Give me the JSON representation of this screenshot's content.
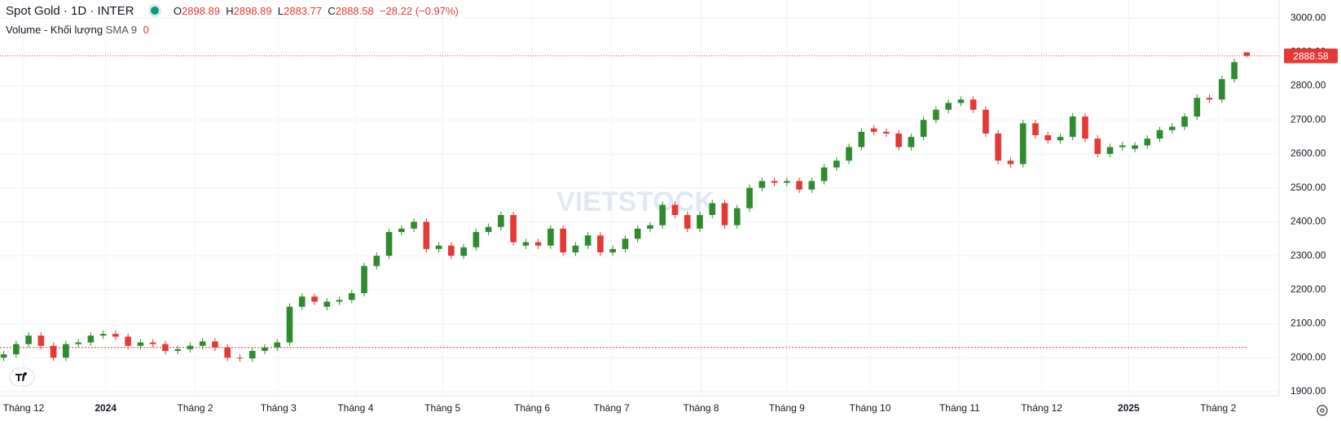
{
  "header": {
    "symbol": "Spot Gold · 1D · INTER",
    "ohlc_letters": [
      "O",
      "H",
      "L",
      "C"
    ],
    "change": "−28.22 (−0.97%)",
    "volume": "Volume - Khối lượng",
    "sma": "SMA 9",
    "sma_value": "0"
  },
  "chart_data": {
    "type": "candlestick",
    "watermark": "VIETSTOCK",
    "up_color": "#2e8b2e",
    "down_color": "#e53935",
    "grid": true,
    "ylim": [
      1888,
      3053
    ],
    "xlim": [
      -0.3,
      102.6
    ],
    "reference_level": 2030,
    "yticks": [
      {
        "value": 1900,
        "label": "1900.00"
      },
      {
        "value": 2000,
        "label": "2000.00"
      },
      {
        "value": 2100,
        "label": "2100.00"
      },
      {
        "value": 2200,
        "label": "2200.00"
      },
      {
        "value": 2300,
        "label": "2300.00"
      },
      {
        "value": 2400,
        "label": "2400.00"
      },
      {
        "value": 2500,
        "label": "2500.00"
      },
      {
        "value": 2600,
        "label": "2600.00"
      },
      {
        "value": 2700,
        "label": "2700.00"
      },
      {
        "value": 2800,
        "label": "2800.00"
      },
      {
        "value": 2900,
        "label": "2900.00"
      },
      {
        "value": 3000,
        "label": "3000.00"
      }
    ],
    "xticks": [
      {
        "value": 1.6,
        "label": "Tháng 12"
      },
      {
        "value": 8.2,
        "label": "2024"
      },
      {
        "value": 15.4,
        "label": "Tháng 2"
      },
      {
        "value": 22.1,
        "label": "Tháng 3"
      },
      {
        "value": 28.3,
        "label": "Tháng 4"
      },
      {
        "value": 35.3,
        "label": "Tháng 5"
      },
      {
        "value": 42.5,
        "label": "Tháng 6"
      },
      {
        "value": 48.9,
        "label": "Tháng 7"
      },
      {
        "value": 56.1,
        "label": "Tháng 8"
      },
      {
        "value": 63.0,
        "label": "Tháng 9"
      },
      {
        "value": 69.7,
        "label": "Tháng 10"
      },
      {
        "value": 76.9,
        "label": "Tháng 11"
      },
      {
        "value": 83.5,
        "label": "Tháng 12"
      },
      {
        "value": 90.5,
        "label": "2025"
      },
      {
        "value": 97.7,
        "label": "Tháng 2"
      }
    ],
    "open": [
      2000,
      2010,
      2040,
      2065,
      2035,
      2000,
      2040,
      2045,
      2065,
      2070,
      2062,
      2035,
      2045,
      2040,
      2020,
      2025,
      2035,
      2048,
      2030,
      2000,
      1998,
      2020,
      2030,
      2045,
      2150,
      2180,
      2150,
      2165,
      2170,
      2190,
      2270,
      2300,
      2370,
      2380,
      2400,
      2320,
      2330,
      2300,
      2325,
      2370,
      2385,
      2420,
      2330,
      2340,
      2330,
      2380,
      2310,
      2330,
      2360,
      2310,
      2320,
      2350,
      2380,
      2390,
      2450,
      2420,
      2380,
      2420,
      2455,
      2390,
      2440,
      2500,
      2520,
      2515,
      2520,
      2495,
      2520,
      2560,
      2580,
      2620,
      2675,
      2665,
      2660,
      2620,
      2650,
      2700,
      2730,
      2750,
      2760,
      2730,
      2660,
      2580,
      2570,
      2690,
      2655,
      2640,
      2650,
      2710,
      2645,
      2600,
      2620,
      2615,
      2625,
      2645,
      2670,
      2680,
      2710,
      2765,
      2760,
      2820,
      2898.89
    ],
    "high": [
      2020,
      2050,
      2075,
      2075,
      2045,
      2050,
      2055,
      2075,
      2080,
      2080,
      2072,
      2055,
      2055,
      2050,
      2035,
      2045,
      2058,
      2058,
      2040,
      2010,
      2030,
      2040,
      2055,
      2160,
      2190,
      2190,
      2175,
      2180,
      2200,
      2280,
      2310,
      2380,
      2390,
      2410,
      2410,
      2340,
      2340,
      2335,
      2380,
      2395,
      2430,
      2430,
      2350,
      2350,
      2390,
      2390,
      2340,
      2370,
      2370,
      2330,
      2360,
      2390,
      2400,
      2460,
      2460,
      2430,
      2430,
      2465,
      2465,
      2450,
      2510,
      2530,
      2530,
      2530,
      2530,
      2530,
      2570,
      2590,
      2630,
      2675,
      2685,
      2675,
      2670,
      2660,
      2710,
      2740,
      2760,
      2770,
      2770,
      2740,
      2670,
      2590,
      2700,
      2700,
      2665,
      2660,
      2720,
      2720,
      2655,
      2630,
      2635,
      2635,
      2655,
      2680,
      2690,
      2720,
      2775,
      2775,
      2830,
      2880,
      2898.89
    ],
    "low": [
      1990,
      2000,
      2030,
      2025,
      1990,
      1990,
      2030,
      2035,
      2055,
      2052,
      2025,
      2025,
      2030,
      2010,
      2010,
      2015,
      2025,
      2020,
      1990,
      1988,
      1988,
      2010,
      2020,
      2035,
      2140,
      2155,
      2140,
      2155,
      2160,
      2180,
      2260,
      2290,
      2360,
      2370,
      2310,
      2310,
      2290,
      2290,
      2315,
      2360,
      2375,
      2330,
      2320,
      2320,
      2320,
      2300,
      2300,
      2320,
      2300,
      2300,
      2310,
      2340,
      2370,
      2380,
      2410,
      2370,
      2370,
      2410,
      2380,
      2380,
      2430,
      2490,
      2505,
      2505,
      2485,
      2485,
      2510,
      2550,
      2570,
      2610,
      2655,
      2650,
      2610,
      2610,
      2640,
      2690,
      2720,
      2740,
      2720,
      2650,
      2570,
      2560,
      2560,
      2645,
      2630,
      2630,
      2640,
      2635,
      2590,
      2590,
      2610,
      2605,
      2615,
      2635,
      2660,
      2670,
      2700,
      2750,
      2750,
      2810,
      2883.77
    ],
    "close": [
      2010,
      2040,
      2065,
      2035,
      2000,
      2040,
      2045,
      2065,
      2070,
      2062,
      2035,
      2045,
      2040,
      2020,
      2025,
      2035,
      2048,
      2030,
      2000,
      1998,
      2020,
      2030,
      2045,
      2150,
      2180,
      2165,
      2165,
      2170,
      2190,
      2270,
      2300,
      2370,
      2380,
      2400,
      2320,
      2330,
      2300,
      2325,
      2370,
      2385,
      2420,
      2340,
      2340,
      2330,
      2380,
      2310,
      2330,
      2360,
      2310,
      2320,
      2350,
      2380,
      2390,
      2450,
      2420,
      2380,
      2420,
      2455,
      2390,
      2440,
      2500,
      2520,
      2515,
      2520,
      2495,
      2520,
      2560,
      2580,
      2620,
      2665,
      2665,
      2660,
      2620,
      2650,
      2700,
      2730,
      2750,
      2760,
      2730,
      2660,
      2580,
      2570,
      2690,
      2655,
      2640,
      2650,
      2710,
      2645,
      2600,
      2620,
      2625,
      2625,
      2645,
      2670,
      2680,
      2710,
      2765,
      2760,
      2820,
      2870,
      2888.58
    ]
  }
}
